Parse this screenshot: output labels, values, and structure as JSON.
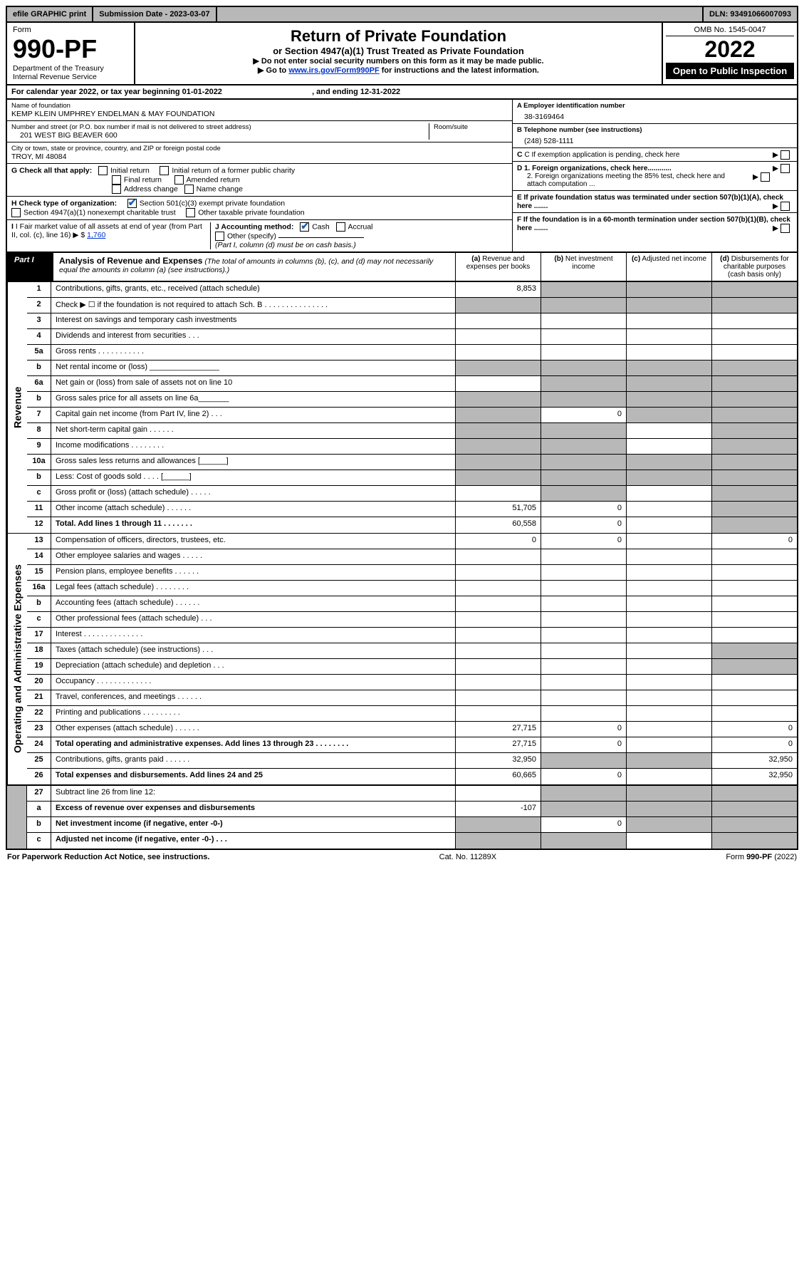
{
  "topbar": {
    "efile": "efile GRAPHIC print",
    "submission_label": "Submission Date - 2023-03-07",
    "dln": "DLN: 93491066007093"
  },
  "header": {
    "form_word": "Form",
    "form_number": "990-PF",
    "dept1": "Department of the Treasury",
    "dept2": "Internal Revenue Service",
    "title": "Return of Private Foundation",
    "subtitle": "or Section 4947(a)(1) Trust Treated as Private Foundation",
    "instr1": "▶ Do not enter social security numbers on this form as it may be made public.",
    "instr2_pre": "▶ Go to ",
    "instr2_link": "www.irs.gov/Form990PF",
    "instr2_post": " for instructions and the latest information.",
    "omb": "OMB No. 1545-0047",
    "year": "2022",
    "open_public": "Open to Public Inspection"
  },
  "calendar": {
    "text_pre": "For calendar year 2022, or tax year beginning ",
    "begin": "01-01-2022",
    "mid": " , and ending ",
    "end": "12-31-2022"
  },
  "info": {
    "name_label": "Name of foundation",
    "name": "KEMP KLEIN UMPHREY ENDELMAN & MAY FOUNDATION",
    "addr_label": "Number and street (or P.O. box number if mail is not delivered to street address)",
    "addr": "201 WEST BIG BEAVER 600",
    "room_label": "Room/suite",
    "city_label": "City or town, state or province, country, and ZIP or foreign postal code",
    "city": "TROY, MI  48084",
    "a_label": "A Employer identification number",
    "a_val": "38-3169464",
    "b_label": "B Telephone number (see instructions)",
    "b_val": "(248) 528-1111",
    "c_label": "C If exemption application is pending, check here",
    "d1_label": "D 1. Foreign organizations, check here............",
    "d2_label": "2. Foreign organizations meeting the 85% test, check here and attach computation ...",
    "e_label": "E  If private foundation status was terminated under section 507(b)(1)(A), check here .......",
    "f_label": "F  If the foundation is in a 60-month termination under section 507(b)(1)(B), check here .......",
    "g_label": "G Check all that apply:",
    "g_opts": [
      "Initial return",
      "Initial return of a former public charity",
      "Final return",
      "Amended return",
      "Address change",
      "Name change"
    ],
    "h_label": "H Check type of organization:",
    "h1": "Section 501(c)(3) exempt private foundation",
    "h2": "Section 4947(a)(1) nonexempt charitable trust",
    "h3": "Other taxable private foundation",
    "i_label": "I Fair market value of all assets at end of year (from Part II, col. (c), line 16) ▶ $ ",
    "i_val": "1,760",
    "j_label": "J Accounting method:",
    "j_cash": "Cash",
    "j_accrual": "Accrual",
    "j_other": "Other (specify)",
    "j_note": "(Part I, column (d) must be on cash basis.)"
  },
  "part1": {
    "label": "Part I",
    "title": "Analysis of Revenue and Expenses",
    "title_note": " (The total of amounts in columns (b), (c), and (d) may not necessarily equal the amounts in column (a) (see instructions).)",
    "col_a": "(a) Revenue and expenses per books",
    "col_b": "(b) Net investment income",
    "col_c": "(c) Adjusted net income",
    "col_d": "(d) Disbursements for charitable purposes (cash basis only)"
  },
  "sections": {
    "revenue": "Revenue",
    "opex": "Operating and Administrative Expenses"
  },
  "lines": [
    {
      "sec": "rev",
      "no": "1",
      "desc": "Contributions, gifts, grants, etc., received (attach schedule)",
      "a": "8,853",
      "b_sh": true,
      "c_sh": true,
      "d_sh": true
    },
    {
      "sec": "rev",
      "no": "2",
      "desc": "Check ▶ ☐ if the foundation is not required to attach Sch. B   .  .  .  .  .  .  .  .  .  .  .  .  .  .  .",
      "all_sh": true
    },
    {
      "sec": "rev",
      "no": "3",
      "desc": "Interest on savings and temporary cash investments",
      "c_sh": false
    },
    {
      "sec": "rev",
      "no": "4",
      "desc": "Dividends and interest from securities   .   .   .",
      "c_sh": false
    },
    {
      "sec": "rev",
      "no": "5a",
      "desc": "Gross rents   .   .   .   .   .   .   .   .   .   .   .",
      "c_sh": false
    },
    {
      "sec": "rev",
      "no": "b",
      "desc": "Net rental income or (loss)  ________________",
      "all_sh": true
    },
    {
      "sec": "rev",
      "no": "6a",
      "desc": "Net gain or (loss) from sale of assets not on line 10",
      "b_sh": true,
      "c_sh": true,
      "d_sh": true
    },
    {
      "sec": "rev",
      "no": "b",
      "desc": "Gross sales price for all assets on line 6a_______",
      "all_sh": true
    },
    {
      "sec": "rev",
      "no": "7",
      "desc": "Capital gain net income (from Part IV, line 2)   .   .   .",
      "a_sh": true,
      "b": "0",
      "c_sh": true,
      "d_sh": true
    },
    {
      "sec": "rev",
      "no": "8",
      "desc": "Net short-term capital gain   .   .   .   .   .   .",
      "a_sh": true,
      "b_sh": true,
      "d_sh": true
    },
    {
      "sec": "rev",
      "no": "9",
      "desc": "Income modifications   .   .   .   .   .   .   .   .",
      "a_sh": true,
      "b_sh": true,
      "d_sh": true
    },
    {
      "sec": "rev",
      "no": "10a",
      "desc": "Gross sales less returns and allowances   [______]",
      "all_sh": true
    },
    {
      "sec": "rev",
      "no": "b",
      "desc": "Less: Cost of goods sold   .   .   .   .   [______]",
      "all_sh": true
    },
    {
      "sec": "rev",
      "no": "c",
      "desc": "Gross profit or (loss) (attach schedule)   .   .   .   .   .",
      "b_sh": true,
      "d_sh": true
    },
    {
      "sec": "rev",
      "no": "11",
      "desc": "Other income (attach schedule)   .   .   .   .   .   .",
      "a": "51,705",
      "b": "0",
      "d_sh": true
    },
    {
      "sec": "rev",
      "no": "12",
      "desc": "Total. Add lines 1 through 11   .   .   .   .   .   .   .",
      "bold": true,
      "a": "60,558",
      "b": "0",
      "d_sh": true
    },
    {
      "sec": "op",
      "no": "13",
      "desc": "Compensation of officers, directors, trustees, etc.",
      "a": "0",
      "b": "0",
      "d": "0"
    },
    {
      "sec": "op",
      "no": "14",
      "desc": "Other employee salaries and wages   .   .   .   .   ."
    },
    {
      "sec": "op",
      "no": "15",
      "desc": "Pension plans, employee benefits   .   .   .   .   .   ."
    },
    {
      "sec": "op",
      "no": "16a",
      "desc": "Legal fees (attach schedule)   .   .   .   .   .   .   .   ."
    },
    {
      "sec": "op",
      "no": "b",
      "desc": "Accounting fees (attach schedule)   .   .   .   .   .   ."
    },
    {
      "sec": "op",
      "no": "c",
      "desc": "Other professional fees (attach schedule)   .   .   ."
    },
    {
      "sec": "op",
      "no": "17",
      "desc": "Interest   .   .   .   .   .   .   .   .   .   .   .   .   .   ."
    },
    {
      "sec": "op",
      "no": "18",
      "desc": "Taxes (attach schedule) (see instructions)   .   .   .",
      "d_sh": true
    },
    {
      "sec": "op",
      "no": "19",
      "desc": "Depreciation (attach schedule) and depletion   .   .   .",
      "d_sh": true
    },
    {
      "sec": "op",
      "no": "20",
      "desc": "Occupancy   .   .   .   .   .   .   .   .   .   .   .   .   ."
    },
    {
      "sec": "op",
      "no": "21",
      "desc": "Travel, conferences, and meetings   .   .   .   .   .   ."
    },
    {
      "sec": "op",
      "no": "22",
      "desc": "Printing and publications   .   .   .   .   .   .   .   .   ."
    },
    {
      "sec": "op",
      "no": "23",
      "desc": "Other expenses (attach schedule)   .   .   .   .   .   .",
      "a": "27,715",
      "b": "0",
      "d": "0"
    },
    {
      "sec": "op",
      "no": "24",
      "desc": "Total operating and administrative expenses. Add lines 13 through 23   .   .   .   .   .   .   .   .",
      "bold": true,
      "a": "27,715",
      "b": "0",
      "d": "0"
    },
    {
      "sec": "op",
      "no": "25",
      "desc": "Contributions, gifts, grants paid   .   .   .   .   .   .",
      "a": "32,950",
      "b_sh": true,
      "c_sh": true,
      "d": "32,950"
    },
    {
      "sec": "op",
      "no": "26",
      "desc": "Total expenses and disbursements. Add lines 24 and 25",
      "bold": true,
      "a": "60,665",
      "b": "0",
      "d": "32,950"
    },
    {
      "sec": "end",
      "no": "27",
      "desc": "Subtract line 26 from line 12:",
      "b_sh": true,
      "c_sh": true,
      "d_sh": true
    },
    {
      "sec": "end",
      "no": "a",
      "desc": "Excess of revenue over expenses and disbursements",
      "bold": true,
      "a": "-107",
      "b_sh": true,
      "c_sh": true,
      "d_sh": true
    },
    {
      "sec": "end",
      "no": "b",
      "desc": "Net investment income (if negative, enter -0-)",
      "bold": true,
      "a_sh": true,
      "b": "0",
      "c_sh": true,
      "d_sh": true
    },
    {
      "sec": "end",
      "no": "c",
      "desc": "Adjusted net income (if negative, enter -0-)   .   .   .",
      "bold": true,
      "a_sh": true,
      "b_sh": true,
      "d_sh": true
    }
  ],
  "footer": {
    "left": "For Paperwork Reduction Act Notice, see instructions.",
    "center": "Cat. No. 11289X",
    "right": "Form 990-PF (2022)"
  },
  "colors": {
    "grey": "#b8b8b8",
    "link": "#0033cc",
    "check": "#1a5fb4"
  }
}
